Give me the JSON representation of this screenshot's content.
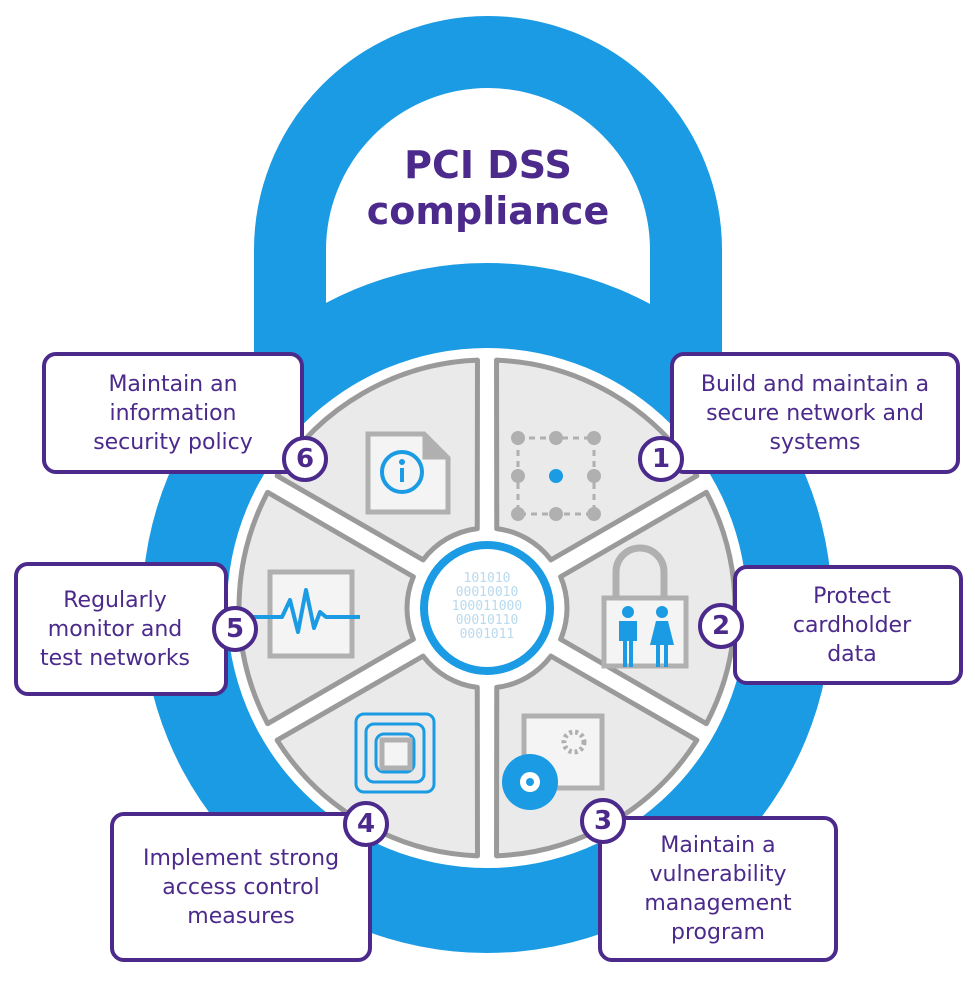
{
  "title": {
    "line1": "PCI DSS",
    "line2": "compliance"
  },
  "hub_binary": [
    "101010",
    "00010010",
    "100011000",
    "00010110",
    "0001011"
  ],
  "requirements": [
    {
      "number": "1",
      "label": "Build and maintain a secure network and systems",
      "icon": "network-nodes-icon"
    },
    {
      "number": "2",
      "label": "Protect cardholder data",
      "icon": "padlock-people-icon"
    },
    {
      "number": "3",
      "label": "Maintain a vulnerability management program",
      "icon": "disc-gear-icon"
    },
    {
      "number": "4",
      "label": "Implement strong access control measures",
      "icon": "layered-squares-icon"
    },
    {
      "number": "5",
      "label": "Regularly monitor and test networks",
      "icon": "pulse-monitor-icon"
    },
    {
      "number": "6",
      "label": "Maintain an information security policy",
      "icon": "info-document-icon"
    }
  ],
  "colors": {
    "accent_blue": "#1a9be4",
    "purple": "#4b2a8c",
    "segment_gray": "#eaeaea",
    "outline_gray": "#9a9a9a"
  }
}
